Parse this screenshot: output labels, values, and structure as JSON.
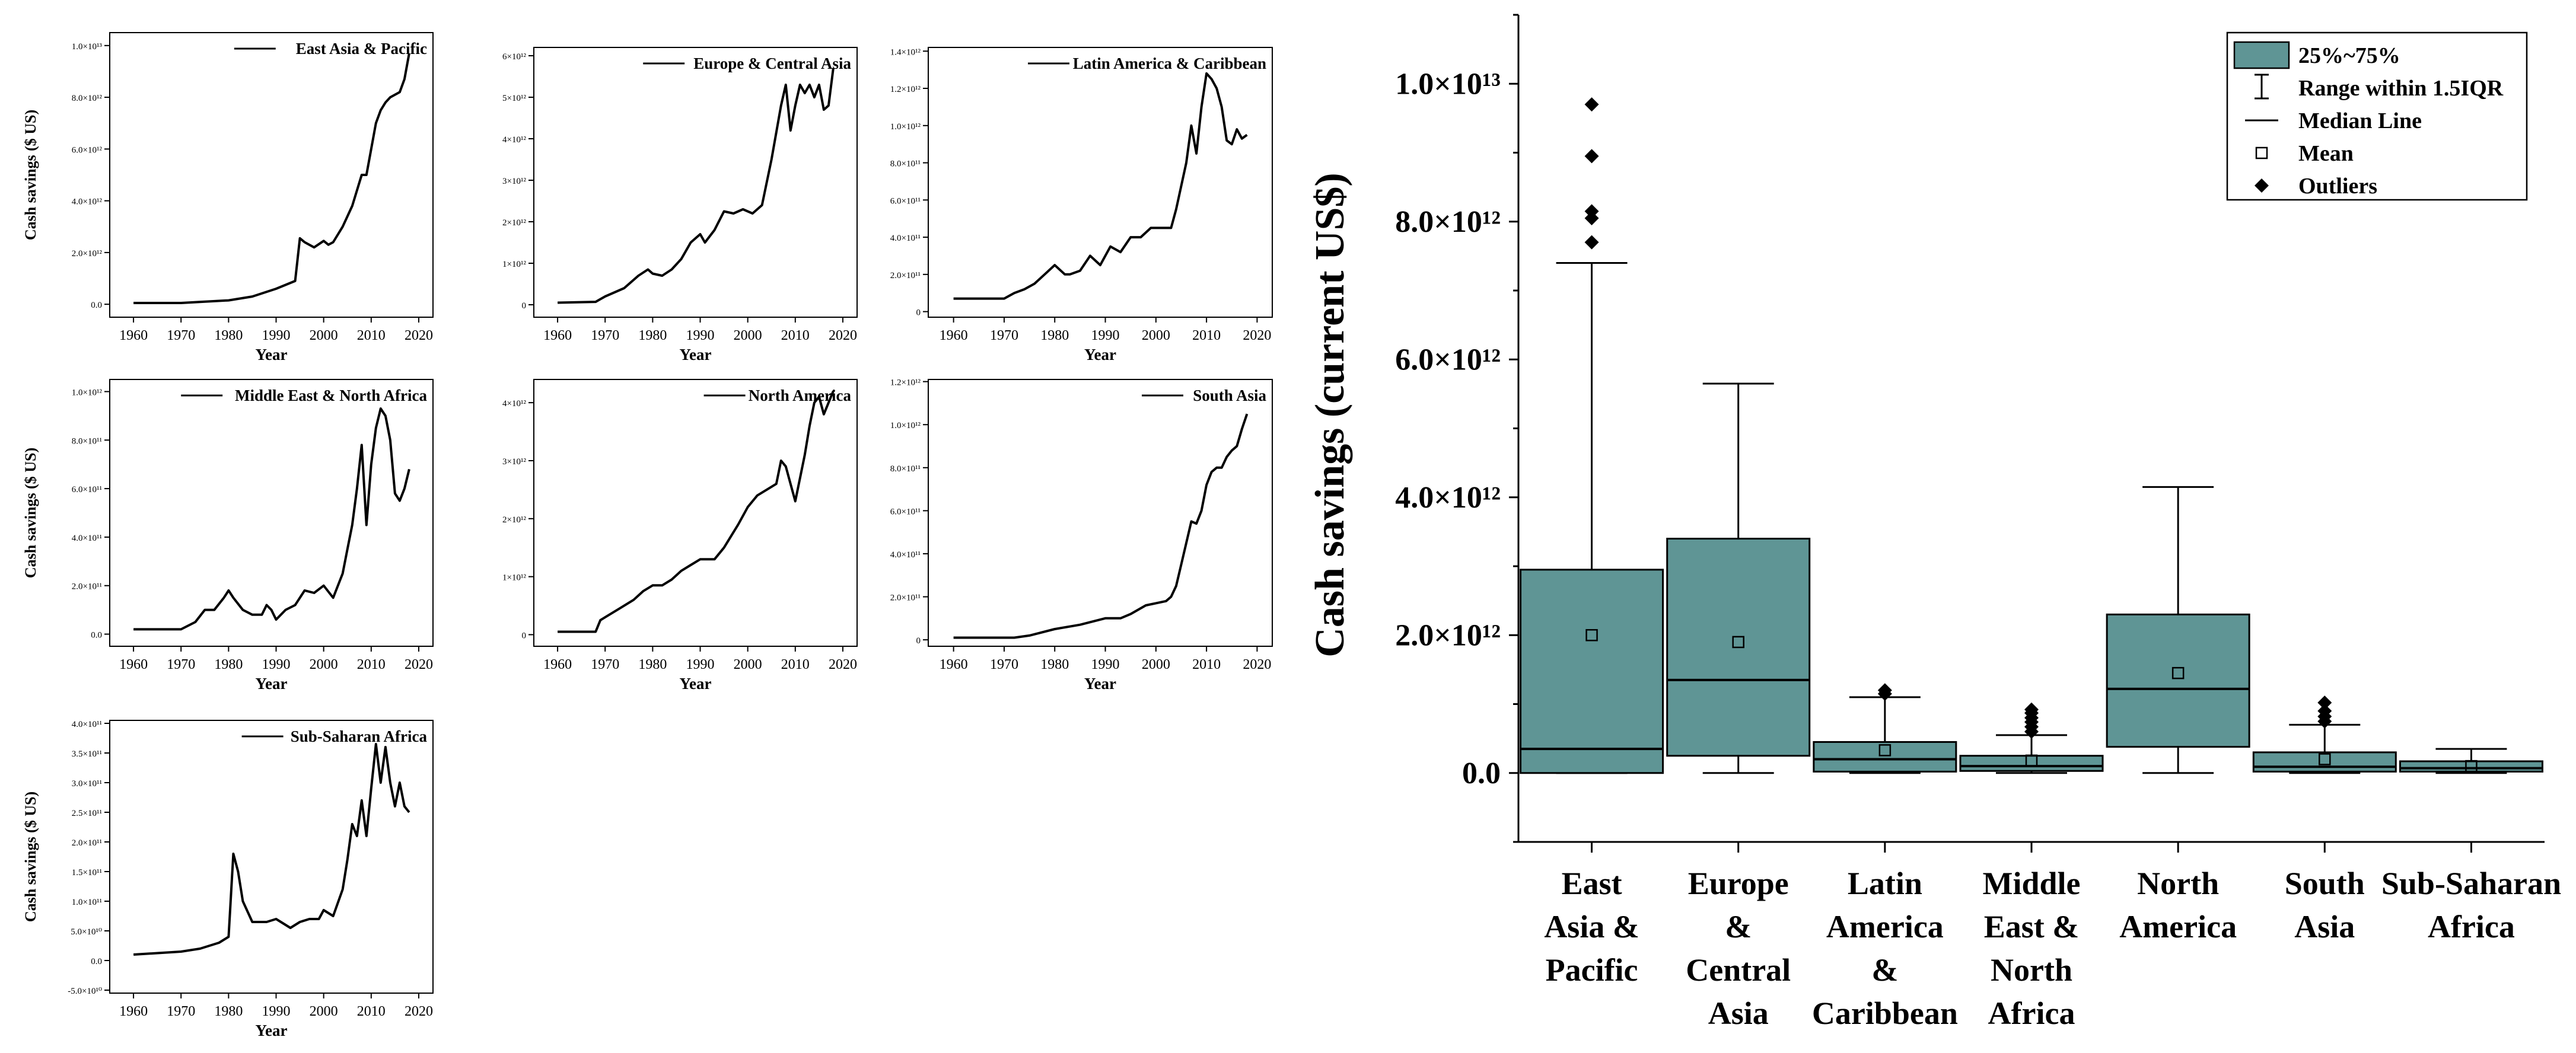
{
  "colors": {
    "box_fill": "#5f9595",
    "line": "#000000",
    "background": "#ffffff"
  },
  "chart_data": [
    {
      "type": "line",
      "title": "East Asia & Pacific",
      "legend": "East Asia & Pacific",
      "xlabel": "Year",
      "ylabel": "Cash savings ($ US)",
      "xlim": [
        1955,
        2023
      ],
      "xticks": [
        1960,
        1970,
        1980,
        1990,
        2000,
        2010,
        2020
      ],
      "ylim": [
        -0.5,
        10.5
      ],
      "yticks": [
        0,
        2,
        4,
        6,
        8,
        10
      ],
      "yticklabels": [
        "0.0",
        "2.0×10¹²",
        "4.0×10¹²",
        "6.0×10¹²",
        "8.0×10¹²",
        "1.0×10¹³"
      ],
      "unit": "1e12 US$",
      "x": [
        1960,
        1970,
        1980,
        1985,
        1990,
        1994,
        1995,
        1996,
        1998,
        2000,
        2001,
        2002,
        2004,
        2006,
        2008,
        2009,
        2010,
        2011,
        2012,
        2013,
        2014,
        2015,
        2016,
        2017,
        2018
      ],
      "y": [
        0.05,
        0.05,
        0.15,
        0.3,
        0.6,
        0.9,
        2.55,
        2.4,
        2.2,
        2.45,
        2.3,
        2.4,
        3.0,
        3.8,
        5.0,
        5.0,
        6.0,
        7.0,
        7.5,
        7.8,
        8.0,
        8.1,
        8.2,
        8.7,
        9.7
      ]
    },
    {
      "type": "line",
      "title": "Europe & Central Asia",
      "legend": "Europe & Central Asia",
      "xlabel": "Year",
      "ylabel": "",
      "xlim": [
        1955,
        2023
      ],
      "xticks": [
        1960,
        1970,
        1980,
        1990,
        2000,
        2010,
        2020
      ],
      "ylim": [
        -0.3,
        6.2
      ],
      "yticks": [
        0,
        1,
        2,
        3,
        4,
        5,
        6
      ],
      "yticklabels": [
        "0",
        "1×10¹²",
        "2×10¹²",
        "3×10¹²",
        "4×10¹²",
        "5×10¹²",
        "6×10¹²"
      ],
      "unit": "1e12 US$",
      "x": [
        1960,
        1968,
        1970,
        1974,
        1977,
        1979,
        1980,
        1982,
        1984,
        1986,
        1988,
        1990,
        1991,
        1993,
        1995,
        1997,
        1999,
        2001,
        2003,
        2005,
        2007,
        2008,
        2009,
        2010,
        2011,
        2012,
        2013,
        2014,
        2015,
        2016,
        2017,
        2018
      ],
      "y": [
        0.05,
        0.07,
        0.2,
        0.4,
        0.7,
        0.85,
        0.75,
        0.7,
        0.85,
        1.1,
        1.5,
        1.7,
        1.5,
        1.8,
        2.25,
        2.2,
        2.3,
        2.2,
        2.4,
        3.5,
        4.8,
        5.3,
        4.2,
        4.8,
        5.3,
        5.1,
        5.3,
        5.0,
        5.3,
        4.7,
        4.8,
        5.7
      ]
    },
    {
      "type": "line",
      "title": "Latin America & Caribbean",
      "legend": "Latin America & Caribbean",
      "xlabel": "Year",
      "ylabel": "",
      "xlim": [
        1955,
        2023
      ],
      "xticks": [
        1960,
        1970,
        1980,
        1990,
        2000,
        2010,
        2020
      ],
      "ylim": [
        -0.03,
        1.42
      ],
      "yticks": [
        0,
        0.2,
        0.4,
        0.6,
        0.8,
        1.0,
        1.2,
        1.4
      ],
      "yticklabels": [
        "0",
        "2.0×10¹¹",
        "4.0×10¹¹",
        "6.0×10¹¹",
        "8.0×10¹¹",
        "1.0×10¹²",
        "1.2×10¹²",
        "1.4×10¹²"
      ],
      "unit": "1e12 US$",
      "x": [
        1960,
        1970,
        1972,
        1974,
        1976,
        1978,
        1980,
        1982,
        1983,
        1985,
        1987,
        1989,
        1990,
        1991,
        1993,
        1995,
        1997,
        1999,
        2001,
        2003,
        2004,
        2006,
        2007,
        2008,
        2009,
        2010,
        2011,
        2012,
        2013,
        2014,
        2015,
        2016,
        2017,
        2018
      ],
      "y": [
        0.07,
        0.07,
        0.1,
        0.12,
        0.15,
        0.2,
        0.25,
        0.2,
        0.2,
        0.22,
        0.3,
        0.25,
        0.3,
        0.35,
        0.32,
        0.4,
        0.4,
        0.45,
        0.45,
        0.45,
        0.55,
        0.8,
        1.0,
        0.85,
        1.1,
        1.28,
        1.25,
        1.2,
        1.1,
        0.92,
        0.9,
        0.98,
        0.93,
        0.95
      ]
    },
    {
      "type": "line",
      "title": "Middle East & North Africa",
      "legend": "Middle East & North Africa",
      "xlabel": "Year",
      "ylabel": "Cash savings ($ US)",
      "xlim": [
        1955,
        2023
      ],
      "xticks": [
        1960,
        1970,
        1980,
        1990,
        2000,
        2010,
        2020
      ],
      "ylim": [
        -0.05,
        1.05
      ],
      "yticks": [
        0,
        0.2,
        0.4,
        0.6,
        0.8,
        1.0
      ],
      "yticklabels": [
        "0.0",
        "2.0×10¹¹",
        "4.0×10¹¹",
        "6.0×10¹¹",
        "8.0×10¹¹",
        "1.0×10¹²"
      ],
      "unit": "1e12 US$",
      "x": [
        1960,
        1970,
        1973,
        1975,
        1977,
        1979,
        1980,
        1981,
        1983,
        1985,
        1987,
        1988,
        1989,
        1990,
        1992,
        1994,
        1996,
        1998,
        2000,
        2002,
        2004,
        2005,
        2006,
        2007,
        2008,
        2009,
        2010,
        2011,
        2012,
        2013,
        2014,
        2015,
        2016,
        2017,
        2018
      ],
      "y": [
        0.02,
        0.02,
        0.05,
        0.1,
        0.1,
        0.15,
        0.18,
        0.15,
        0.1,
        0.08,
        0.08,
        0.12,
        0.1,
        0.06,
        0.1,
        0.12,
        0.18,
        0.17,
        0.2,
        0.15,
        0.25,
        0.35,
        0.45,
        0.6,
        0.78,
        0.45,
        0.7,
        0.85,
        0.93,
        0.9,
        0.8,
        0.58,
        0.55,
        0.6,
        0.68
      ]
    },
    {
      "type": "line",
      "title": "North America",
      "legend": "North America",
      "xlabel": "Year",
      "ylabel": "",
      "xlim": [
        1955,
        2023
      ],
      "xticks": [
        1960,
        1970,
        1980,
        1990,
        2000,
        2010,
        2020
      ],
      "ylim": [
        -0.2,
        4.4
      ],
      "yticks": [
        0,
        1,
        2,
        3,
        4
      ],
      "yticklabels": [
        "0",
        "1×10¹²",
        "2×10¹²",
        "3×10¹²",
        "4×10¹²"
      ],
      "unit": "1e12 US$",
      "x": [
        1960,
        1968,
        1969,
        1970,
        1973,
        1976,
        1978,
        1980,
        1982,
        1984,
        1986,
        1988,
        1990,
        1993,
        1995,
        1998,
        2000,
        2002,
        2004,
        2006,
        2007,
        2008,
        2009,
        2010,
        2012,
        2013,
        2014,
        2015,
        2016,
        2017,
        2018
      ],
      "y": [
        0.05,
        0.05,
        0.25,
        0.3,
        0.45,
        0.6,
        0.75,
        0.85,
        0.85,
        0.95,
        1.1,
        1.2,
        1.3,
        1.3,
        1.5,
        1.9,
        2.2,
        2.4,
        2.5,
        2.6,
        3.0,
        2.9,
        2.6,
        2.3,
        3.1,
        3.6,
        4.0,
        4.1,
        3.8,
        4.0,
        4.2
      ]
    },
    {
      "type": "line",
      "title": "South Asia",
      "legend": "South Asia",
      "xlabel": "Year",
      "ylabel": "",
      "xlim": [
        1955,
        2023
      ],
      "xticks": [
        1960,
        1970,
        1980,
        1990,
        2000,
        2010,
        2020
      ],
      "ylim": [
        -0.03,
        1.21
      ],
      "yticks": [
        0,
        0.2,
        0.4,
        0.6,
        0.8,
        1.0,
        1.2
      ],
      "yticklabels": [
        "0",
        "2.0×10¹¹",
        "4.0×10¹¹",
        "6.0×10¹¹",
        "8.0×10¹¹",
        "1.0×10¹²",
        "1.2×10¹²"
      ],
      "unit": "1e12 US$",
      "x": [
        1960,
        1972,
        1975,
        1980,
        1985,
        1990,
        1993,
        1995,
        1998,
        2000,
        2002,
        2003,
        2004,
        2005,
        2006,
        2007,
        2008,
        2009,
        2010,
        2011,
        2012,
        2013,
        2014,
        2015,
        2016,
        2017,
        2018
      ],
      "y": [
        0.01,
        0.01,
        0.02,
        0.05,
        0.07,
        0.1,
        0.1,
        0.12,
        0.16,
        0.17,
        0.18,
        0.2,
        0.25,
        0.35,
        0.45,
        0.55,
        0.54,
        0.6,
        0.72,
        0.78,
        0.8,
        0.8,
        0.85,
        0.88,
        0.9,
        0.98,
        1.05
      ]
    },
    {
      "type": "line",
      "title": "Sub-Saharan Africa",
      "legend": "Sub-Saharan Africa",
      "xlabel": "Year",
      "ylabel": "Cash savings ($ US)",
      "xlim": [
        1955,
        2023
      ],
      "xticks": [
        1960,
        1970,
        1980,
        1990,
        2000,
        2010,
        2020
      ],
      "ylim": [
        -0.55,
        4.05
      ],
      "yticks": [
        -0.5,
        0,
        0.5,
        1,
        1.5,
        2,
        2.5,
        3,
        3.5,
        4
      ],
      "yticklabels": [
        "-5.0×10¹⁰",
        "0.0",
        "5.0×10¹⁰",
        "1.0×10¹¹",
        "1.5×10¹¹",
        "2.0×10¹¹",
        "2.5×10¹¹",
        "3.0×10¹¹",
        "3.5×10¹¹",
        "4.0×10¹¹"
      ],
      "unit": "1e11 US$",
      "x": [
        1960,
        1970,
        1974,
        1978,
        1980,
        1981,
        1982,
        1983,
        1985,
        1988,
        1990,
        1993,
        1995,
        1997,
        1999,
        2000,
        2002,
        2004,
        2005,
        2006,
        2007,
        2008,
        2009,
        2010,
        2011,
        2012,
        2013,
        2014,
        2015,
        2016,
        2017,
        2018
      ],
      "y": [
        0.1,
        0.15,
        0.2,
        0.3,
        0.4,
        1.8,
        1.5,
        1.0,
        0.65,
        0.65,
        0.7,
        0.55,
        0.65,
        0.7,
        0.7,
        0.85,
        0.75,
        1.2,
        1.7,
        2.3,
        2.1,
        2.7,
        2.1,
        2.9,
        3.65,
        3.0,
        3.6,
        3.0,
        2.6,
        3.0,
        2.6,
        2.5
      ]
    },
    {
      "type": "box",
      "ylabel": "Cash savings (current US$)",
      "unit": "1e12 US$",
      "ylim": [
        -1.0,
        11.0
      ],
      "yticks": [
        0,
        2,
        4,
        6,
        8,
        10
      ],
      "yticklabels": [
        "0.0",
        "2.0×10¹²",
        "4.0×10¹²",
        "6.0×10¹²",
        "8.0×10¹²",
        "1.0×10¹³"
      ],
      "legend": [
        "25%~75%",
        "Range within 1.5IQR",
        "Median Line",
        "Mean",
        "Outliers"
      ],
      "categories": [
        [
          "East",
          "Asia &",
          "Pacific"
        ],
        [
          "Europe",
          "&",
          "Central",
          "Asia"
        ],
        [
          "Latin",
          "America",
          "&",
          "Caribbean"
        ],
        [
          "Middle",
          "East &",
          "North",
          "Africa"
        ],
        [
          "North",
          "America"
        ],
        [
          "South",
          "Asia"
        ],
        [
          "Sub-Saharan",
          "Africa"
        ]
      ],
      "boxes": [
        {
          "q1": 0.0,
          "median": 0.35,
          "q3": 2.95,
          "whisker_low": 0.0,
          "whisker_high": 7.4,
          "mean": 2.0,
          "outliers": [
            7.7,
            8.05,
            8.15,
            8.95,
            9.7
          ]
        },
        {
          "q1": 0.25,
          "median": 1.35,
          "q3": 3.4,
          "whisker_low": 0.0,
          "whisker_high": 5.65,
          "mean": 1.9,
          "outliers": []
        },
        {
          "q1": 0.02,
          "median": 0.2,
          "q3": 0.45,
          "whisker_low": 0.0,
          "whisker_high": 1.1,
          "mean": 0.33,
          "outliers": [
            1.15,
            1.2
          ]
        },
        {
          "q1": 0.03,
          "median": 0.1,
          "q3": 0.25,
          "whisker_low": 0.0,
          "whisker_high": 0.55,
          "mean": 0.18,
          "outliers": [
            0.6,
            0.67,
            0.74,
            0.8,
            0.87,
            0.92
          ]
        },
        {
          "q1": 0.38,
          "median": 1.22,
          "q3": 2.3,
          "whisker_low": 0.0,
          "whisker_high": 4.15,
          "mean": 1.45,
          "outliers": []
        },
        {
          "q1": 0.02,
          "median": 0.09,
          "q3": 0.3,
          "whisker_low": 0.0,
          "whisker_high": 0.7,
          "mean": 0.2,
          "outliers": [
            0.75,
            0.82,
            0.9,
            1.02
          ]
        },
        {
          "q1": 0.02,
          "median": 0.07,
          "q3": 0.17,
          "whisker_low": 0.0,
          "whisker_high": 0.35,
          "mean": 0.1,
          "outliers": []
        }
      ]
    }
  ]
}
